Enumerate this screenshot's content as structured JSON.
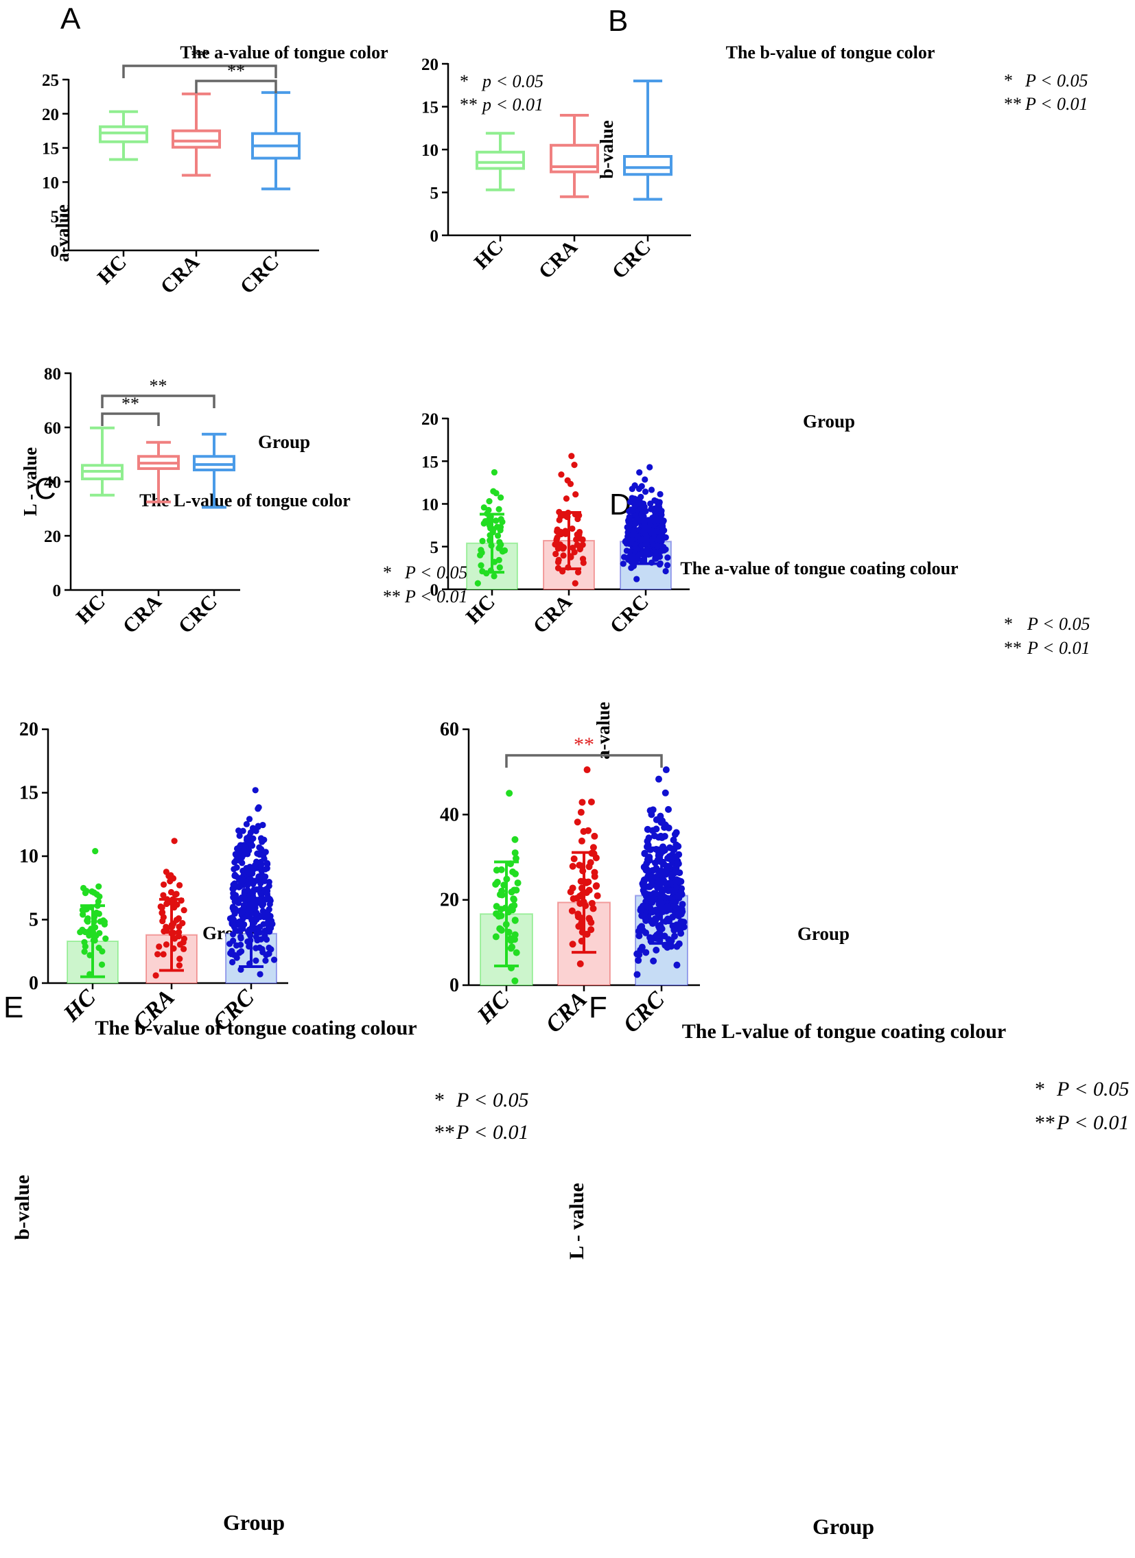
{
  "figure": {
    "panels": [
      {
        "letter": "A"
      },
      {
        "letter": "B"
      },
      {
        "letter": "C"
      },
      {
        "letter": "D"
      },
      {
        "letter": "E"
      },
      {
        "letter": "F"
      }
    ]
  },
  "colors": {
    "HC_box": "#90ee90",
    "CRA_box": "#f08080",
    "CRC_box": "#4a9be8",
    "HC_dot": "#22dd22",
    "CRA_dot": "#e01010",
    "CRC_dot": "#1010d0",
    "HC_bar": "#ccf5cc",
    "CRA_bar": "#fbd2d2",
    "CRC_bar": "#c6dcf5",
    "bracket": "#666666",
    "red_star": "#e02020"
  },
  "chart_data": [
    {
      "type": "boxplot",
      "title": "The a-value of tongue color",
      "xlabel": "Group",
      "ylabel": "a-value",
      "categories": [
        "HC",
        "CRA",
        "CRC"
      ],
      "ylim": [
        0,
        25
      ],
      "yticks": [
        0,
        5,
        10,
        15,
        20,
        25
      ],
      "boxes": [
        {
          "min": 13.3,
          "q1": 15.9,
          "median": 17.2,
          "q3": 18.1,
          "max": 20.3
        },
        {
          "min": 11.0,
          "q1": 15.1,
          "median": 16.0,
          "q3": 17.5,
          "max": 22.9
        },
        {
          "min": 9.0,
          "q1": 13.5,
          "median": 15.3,
          "q3": 17.1,
          "max": 23.1
        }
      ],
      "significance": [
        {
          "from": 0,
          "to": 2,
          "label": "**"
        },
        {
          "from": 1,
          "to": 2,
          "label": "**"
        }
      ],
      "legend": {
        "line1_stars": "*",
        "line1_p": "p < 0.05",
        "line2_stars": "**",
        "line2_p": "p < 0.01"
      }
    },
    {
      "type": "boxplot",
      "title": "The b-value of tongue color",
      "xlabel": "Group",
      "ylabel": "b-value",
      "categories": [
        "HC",
        "CRA",
        "CRC"
      ],
      "ylim": [
        0,
        20
      ],
      "yticks": [
        0,
        5,
        10,
        15,
        20
      ],
      "boxes": [
        {
          "min": 5.3,
          "q1": 7.8,
          "median": 8.5,
          "q3": 9.7,
          "max": 11.9
        },
        {
          "min": 4.5,
          "q1": 7.4,
          "median": 8.0,
          "q3": 10.5,
          "max": 14.0
        },
        {
          "min": 4.2,
          "q1": 7.1,
          "median": 7.9,
          "q3": 9.2,
          "max": 18.0
        }
      ],
      "significance": [],
      "legend": {
        "line1_stars": "*",
        "line1_p": "P < 0.05",
        "line2_stars": "**",
        "line2_p": "P < 0.01"
      }
    },
    {
      "type": "boxplot",
      "title": "The L-value of tongue color",
      "xlabel": "Group",
      "ylabel": "L - value",
      "categories": [
        "HC",
        "CRA",
        "CRC"
      ],
      "ylim": [
        0,
        80
      ],
      "yticks": [
        0,
        20,
        40,
        60,
        80
      ],
      "boxes": [
        {
          "min": 35.0,
          "q1": 41.0,
          "median": 43.8,
          "q3": 46.0,
          "max": 59.8
        },
        {
          "min": 32.5,
          "q1": 44.8,
          "median": 46.8,
          "q3": 49.3,
          "max": 54.5
        },
        {
          "min": 30.5,
          "q1": 44.3,
          "median": 46.3,
          "q3": 49.3,
          "max": 57.5
        }
      ],
      "significance": [
        {
          "from": 0,
          "to": 2,
          "label": "**"
        },
        {
          "from": 0,
          "to": 1,
          "label": "**"
        }
      ],
      "legend": {
        "line1_stars": "*",
        "line1_p": "P < 0.05",
        "line2_stars": "**",
        "line2_p": "P < 0.01"
      }
    },
    {
      "type": "bar_scatter",
      "title": "The a-value of tongue coating colour",
      "xlabel": "Group",
      "ylabel": "a-value",
      "categories": [
        "HC",
        "CRA",
        "CRC"
      ],
      "ylim": [
        0,
        20
      ],
      "yticks": [
        0,
        5,
        10,
        15,
        20
      ],
      "means": [
        5.4,
        5.7,
        5.6
      ],
      "sd": [
        3.4,
        3.3,
        2.6
      ],
      "n": [
        50,
        60,
        320
      ],
      "ranges": [
        [
          0.7,
          13.7
        ],
        [
          0.7,
          15.6
        ],
        [
          1.2,
          14.3
        ]
      ],
      "significance": [],
      "legend": {
        "line1_stars": "*",
        "line1_p": "P < 0.05",
        "line2_stars": "**",
        "line2_p": "P < 0.01"
      }
    },
    {
      "type": "bar_scatter",
      "title": "The b-value of tongue coating colour",
      "xlabel": "Group",
      "ylabel": "b-value",
      "categories": [
        "HC",
        "CRA",
        "CRC"
      ],
      "ylim": [
        0,
        20
      ],
      "yticks": [
        0,
        5,
        10,
        15,
        20
      ],
      "means": [
        3.3,
        3.8,
        3.9
      ],
      "sd": [
        2.8,
        2.8,
        2.6
      ],
      "n": [
        50,
        60,
        320
      ],
      "ranges": [
        [
          0.7,
          10.4
        ],
        [
          0.6,
          11.2
        ],
        [
          0.7,
          15.2
        ]
      ],
      "significance": [],
      "legend": {
        "line1_stars": "*",
        "line1_p": "P < 0.05",
        "line2_stars": "**",
        "line2_p": "P < 0.01"
      }
    },
    {
      "type": "bar_scatter",
      "title": "The L-value of tongue coating colour",
      "xlabel": "Group",
      "ylabel": "L - value",
      "categories": [
        "HC",
        "CRA",
        "CRC"
      ],
      "ylim": [
        0,
        60
      ],
      "yticks": [
        0,
        20,
        40,
        60
      ],
      "means": [
        16.7,
        19.4,
        21.0
      ],
      "sd": [
        12.2,
        11.7,
        11.2
      ],
      "n": [
        50,
        60,
        320
      ],
      "ranges": [
        [
          1.0,
          45.0
        ],
        [
          5.0,
          50.5
        ],
        [
          2.5,
          50.5
        ]
      ],
      "significance": [
        {
          "from": 0,
          "to": 2,
          "label": "**",
          "red": true
        }
      ],
      "legend": {
        "line1_stars": "*",
        "line1_p": "P < 0.05",
        "line2_stars": "**",
        "line2_p": "P < 0.01"
      }
    }
  ]
}
